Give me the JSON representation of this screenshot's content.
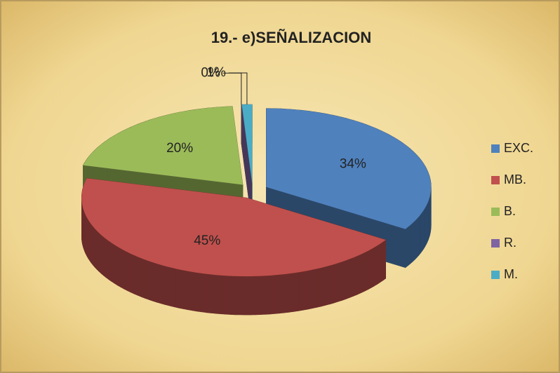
{
  "chart_data": {
    "type": "pie",
    "title": "19.- e)SEÑALIZACION",
    "categories": [
      "EXC.",
      "MB.",
      "B.",
      "R.",
      "M."
    ],
    "values": [
      34,
      45,
      20,
      0,
      1
    ],
    "value_labels": [
      "34%",
      "45%",
      "20%",
      "0%",
      "1%"
    ],
    "colors": [
      "#4f81bd",
      "#c0504d",
      "#9bbb59",
      "#8064a2",
      "#4bacc6"
    ],
    "legend": "right"
  }
}
